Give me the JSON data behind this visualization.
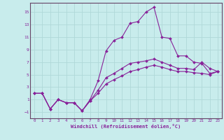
{
  "xlabel": "Windchill (Refroidissement éolien,°C)",
  "bg_color": "#c8ecec",
  "grid_color": "#b0d8d8",
  "line_color": "#882299",
  "spine_color": "#664466",
  "xlim": [
    -0.5,
    23.5
  ],
  "ylim": [
    -2.0,
    16.5
  ],
  "yticks": [
    -1,
    1,
    3,
    5,
    7,
    9,
    11,
    13,
    15
  ],
  "xticks": [
    0,
    1,
    2,
    3,
    4,
    5,
    6,
    7,
    8,
    9,
    10,
    11,
    12,
    13,
    14,
    15,
    16,
    17,
    18,
    19,
    20,
    21,
    22,
    23
  ],
  "series": [
    {
      "x": [
        0,
        1,
        2,
        3,
        4,
        5,
        6,
        7,
        8,
        9,
        10,
        11,
        12,
        13,
        14,
        15,
        16,
        17,
        18,
        19,
        20,
        21,
        22,
        23
      ],
      "y": [
        2,
        2,
        -0.5,
        1.0,
        0.5,
        0.5,
        -0.8,
        1.0,
        4.0,
        8.8,
        10.5,
        11.0,
        13.2,
        13.5,
        15.0,
        15.8,
        11.0,
        10.8,
        8.0,
        8.0,
        7.0,
        6.8,
        5.2,
        5.5
      ]
    },
    {
      "x": [
        0,
        1,
        2,
        3,
        4,
        5,
        6,
        7,
        8,
        9,
        10,
        11,
        12,
        13,
        14,
        15,
        16,
        17,
        18,
        19,
        20,
        21,
        22,
        23
      ],
      "y": [
        2,
        2,
        -0.5,
        1.0,
        0.5,
        0.5,
        -0.8,
        0.8,
        2.5,
        4.5,
        5.2,
        6.0,
        6.8,
        7.0,
        7.2,
        7.5,
        7.0,
        6.5,
        6.0,
        6.0,
        5.8,
        7.0,
        6.0,
        5.5
      ]
    },
    {
      "x": [
        0,
        1,
        2,
        3,
        4,
        5,
        6,
        7,
        8,
        9,
        10,
        11,
        12,
        13,
        14,
        15,
        16,
        17,
        18,
        19,
        20,
        21,
        22,
        23
      ],
      "y": [
        2,
        2,
        -0.5,
        1.0,
        0.5,
        0.5,
        -0.8,
        0.8,
        2.0,
        3.5,
        4.2,
        4.8,
        5.5,
        5.8,
        6.2,
        6.5,
        6.2,
        5.8,
        5.5,
        5.5,
        5.3,
        5.2,
        5.0,
        5.5
      ]
    }
  ]
}
